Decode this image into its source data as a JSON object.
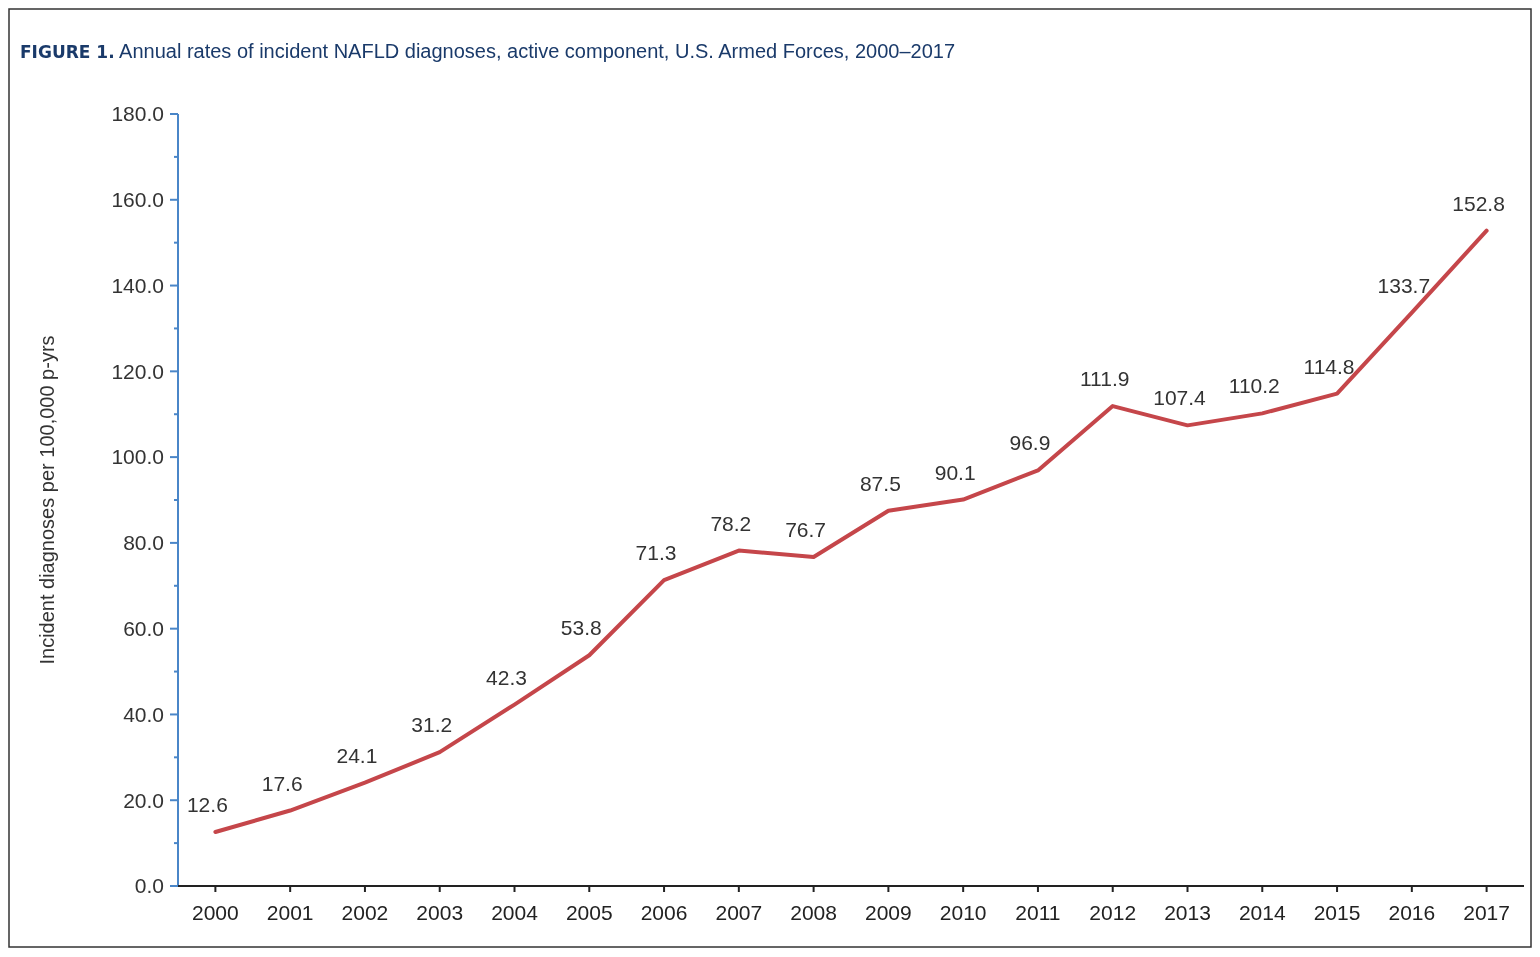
{
  "chart_data": {
    "type": "line",
    "title": "FIGURE 1. Annual rates of incident NAFLD diagnoses, active component, U.S. Armed Forces, 2000–2017",
    "ylabel": "Incident diagnoses per 100,000 p-yrs",
    "categories": [
      "2000",
      "2001",
      "2002",
      "2003",
      "2004",
      "2005",
      "2006",
      "2007",
      "2008",
      "2009",
      "2010",
      "2011",
      "2012",
      "2013",
      "2014",
      "2015",
      "2016",
      "2017"
    ],
    "values": [
      12.6,
      17.6,
      24.1,
      31.2,
      42.3,
      53.8,
      71.3,
      78.2,
      76.7,
      87.5,
      90.1,
      96.9,
      111.9,
      107.4,
      110.2,
      114.8,
      133.7,
      152.8
    ],
    "color": "#c5464a",
    "ylim": [
      0,
      180
    ],
    "yticks": [
      {
        "value": 0,
        "label": "0.0"
      },
      {
        "value": 10,
        "label": null
      },
      {
        "value": 20,
        "label": "20.0"
      },
      {
        "value": 30,
        "label": null
      },
      {
        "value": 40,
        "label": "40.0"
      },
      {
        "value": 50,
        "label": null
      },
      {
        "value": 60,
        "label": "60.0"
      },
      {
        "value": 70,
        "label": null
      },
      {
        "value": 80,
        "label": "80.0"
      },
      {
        "value": 90,
        "label": null
      },
      {
        "value": 100,
        "label": "100.0"
      },
      {
        "value": 110,
        "label": null
      },
      {
        "value": 120,
        "label": "120.0"
      },
      {
        "value": 130,
        "label": null
      },
      {
        "value": 140,
        "label": "140.0"
      },
      {
        "value": 150,
        "label": null
      },
      {
        "value": 160,
        "label": "160.0"
      },
      {
        "value": 170,
        "label": null
      },
      {
        "value": 180,
        "label": "180.0"
      }
    ],
    "data_labels": true,
    "grid": false,
    "marker": "none",
    "line_style": "solid"
  }
}
